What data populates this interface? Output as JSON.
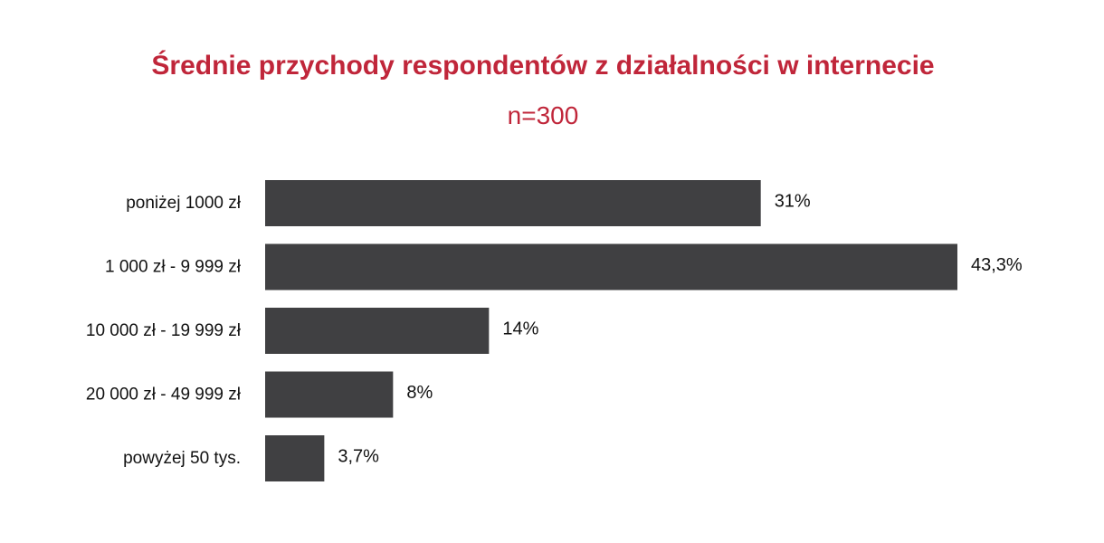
{
  "chart_data": {
    "type": "bar",
    "orientation": "horizontal",
    "title": "Średnie przychody respondentów z działalności w internecie",
    "subtitle": "n=300",
    "categories": [
      "poniżej 1000 zł",
      "1 000 zł - 9 999 zł",
      "10 000 zł - 19 999 zł",
      "20 000 zł - 49 999 zł",
      "powyżej 50 tys."
    ],
    "values": [
      31,
      43.3,
      14,
      8,
      3.7
    ],
    "value_labels": [
      "31%",
      "43,3%",
      "14%",
      "8%",
      "3,7%"
    ],
    "unit": "%",
    "xlim": [
      0,
      43.3
    ],
    "grid": false,
    "legend": "none",
    "colors": {
      "bar": "#404042",
      "title": "#c0263a",
      "text": "#111111"
    }
  }
}
